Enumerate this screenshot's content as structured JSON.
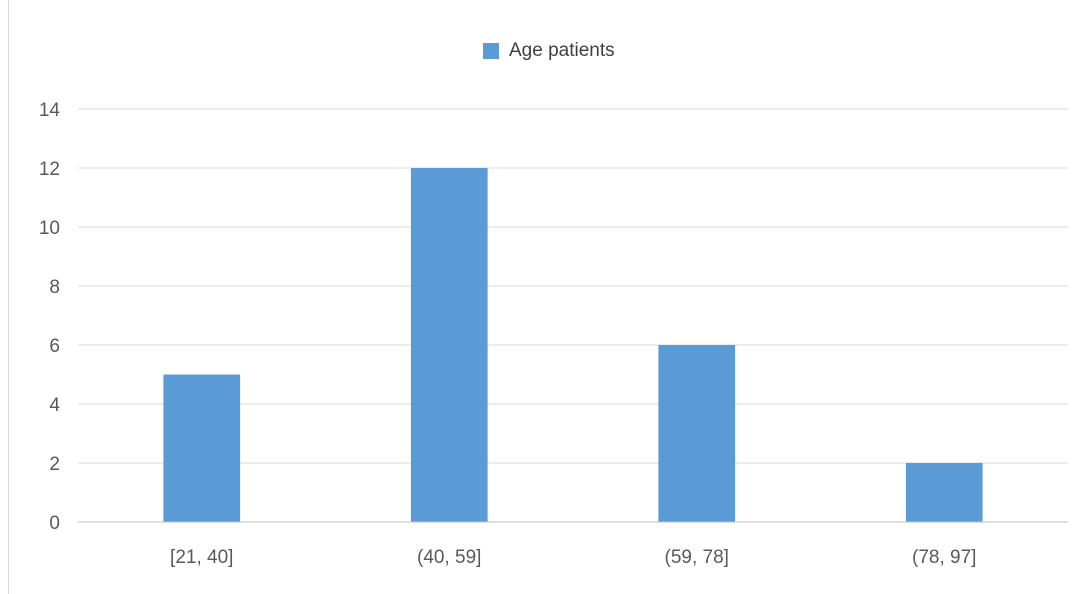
{
  "chart_data": {
    "type": "bar",
    "categories": [
      "[21, 40]",
      "(40, 59]",
      "(59, 78]",
      "(78, 97]"
    ],
    "series": [
      {
        "name": "Age patients",
        "values": [
          5,
          12,
          6,
          2
        ]
      }
    ],
    "title": "",
    "xlabel": "",
    "ylabel": "",
    "ylim": [
      0,
      14
    ],
    "yticks": [
      0,
      2,
      4,
      6,
      8,
      10,
      12,
      14
    ],
    "grid": true,
    "legend_position": "top-center",
    "colors": {
      "bar": "#5b9bd5",
      "grid": "#d9d9d9",
      "axis": "#bfbfbf",
      "text": "#595959"
    }
  }
}
